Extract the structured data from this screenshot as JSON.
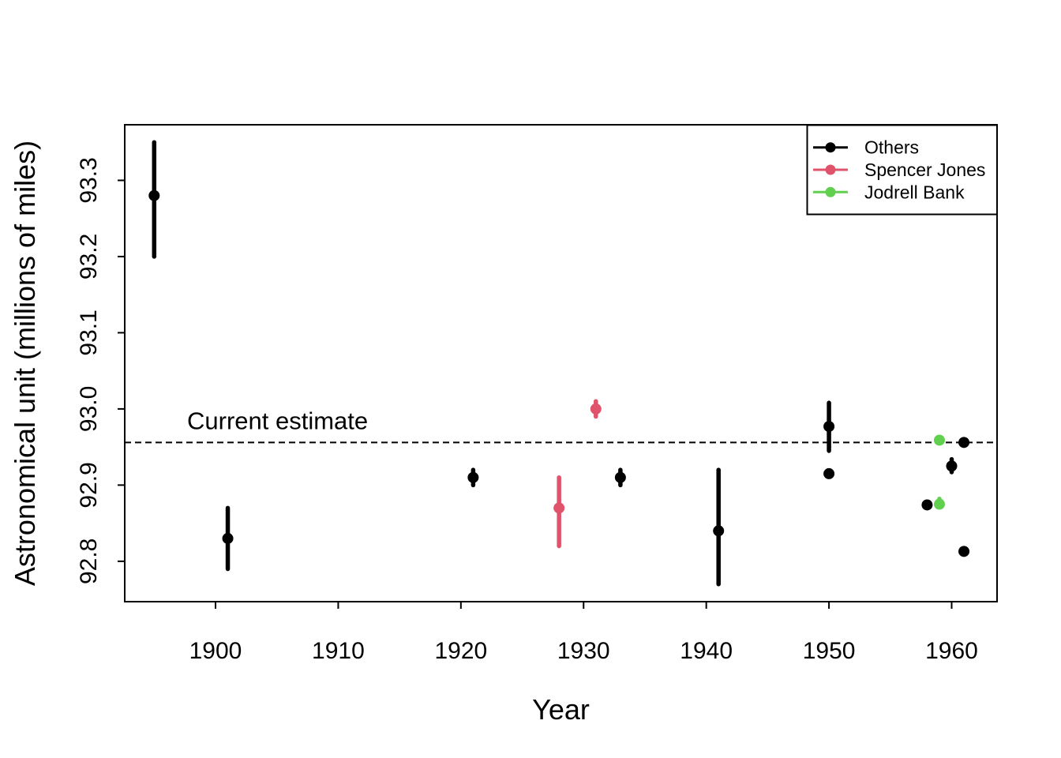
{
  "figure": {
    "background_color": "#ffffff",
    "axis_color": "#000000"
  },
  "chart_data": {
    "type": "scatter",
    "title": "",
    "xlabel": "Year",
    "ylabel": "Astronomical unit (millions of miles)",
    "xlim": [
      1892.6,
      1963.7
    ],
    "ylim": [
      92.747,
      93.373
    ],
    "x_ticks": [
      1900,
      1910,
      1920,
      1930,
      1940,
      1950,
      1960
    ],
    "y_ticks": [
      92.8,
      92.9,
      93.0,
      93.1,
      93.2,
      93.3
    ],
    "y_tick_labels": [
      "92.8",
      "92.9",
      "93.0",
      "93.1",
      "93.2",
      "93.3"
    ],
    "grid": false,
    "reference_line": {
      "label": "Current estimate",
      "value": 92.956,
      "orientation": "horizontal",
      "line_style": "dashed",
      "color": "#000000"
    },
    "legend": {
      "position": "top-right",
      "entries": [
        {
          "label": "Others",
          "color": "#000000"
        },
        {
          "label": "Spencer Jones",
          "color": "#DF536B"
        },
        {
          "label": "Jodrell Bank",
          "color": "#61D04F"
        }
      ]
    },
    "series": [
      {
        "name": "Others",
        "color": "#000000",
        "points": [
          {
            "year": 1895,
            "value": 93.28,
            "low": 93.2,
            "high": 93.35
          },
          {
            "year": 1901,
            "value": 92.83,
            "low": 92.79,
            "high": 92.87
          },
          {
            "year": 1921,
            "value": 92.91,
            "low": 92.9,
            "high": 92.92
          },
          {
            "year": 1933,
            "value": 92.91,
            "low": 92.9,
            "high": 92.92
          },
          {
            "year": 1941,
            "value": 92.84,
            "low": 92.77,
            "high": 92.92
          },
          {
            "year": 1950,
            "value": 92.977,
            "low": 92.945,
            "high": 93.008
          },
          {
            "year": 1950,
            "value": 92.915,
            "low": 92.911,
            "high": 92.919
          },
          {
            "year": 1958,
            "value": 92.874,
            "low": 92.873,
            "high": 92.875
          },
          {
            "year": 1960,
            "value": 92.925,
            "low": 92.917,
            "high": 92.934
          },
          {
            "year": 1961,
            "value": 92.956,
            "low": 92.955,
            "high": 92.957
          },
          {
            "year": 1961,
            "value": 92.813,
            "low": 92.81,
            "high": 92.816
          }
        ]
      },
      {
        "name": "Spencer Jones",
        "color": "#DF536B",
        "points": [
          {
            "year": 1928,
            "value": 92.87,
            "low": 92.82,
            "high": 92.91
          },
          {
            "year": 1931,
            "value": 93.0,
            "low": 92.99,
            "high": 93.01
          }
        ]
      },
      {
        "name": "Jodrell Bank",
        "color": "#61D04F",
        "points": [
          {
            "year": 1959,
            "value": 92.959,
            "low": 92.955,
            "high": 92.963
          },
          {
            "year": 1959,
            "value": 92.875,
            "low": 92.871,
            "high": 92.882
          }
        ]
      }
    ]
  }
}
